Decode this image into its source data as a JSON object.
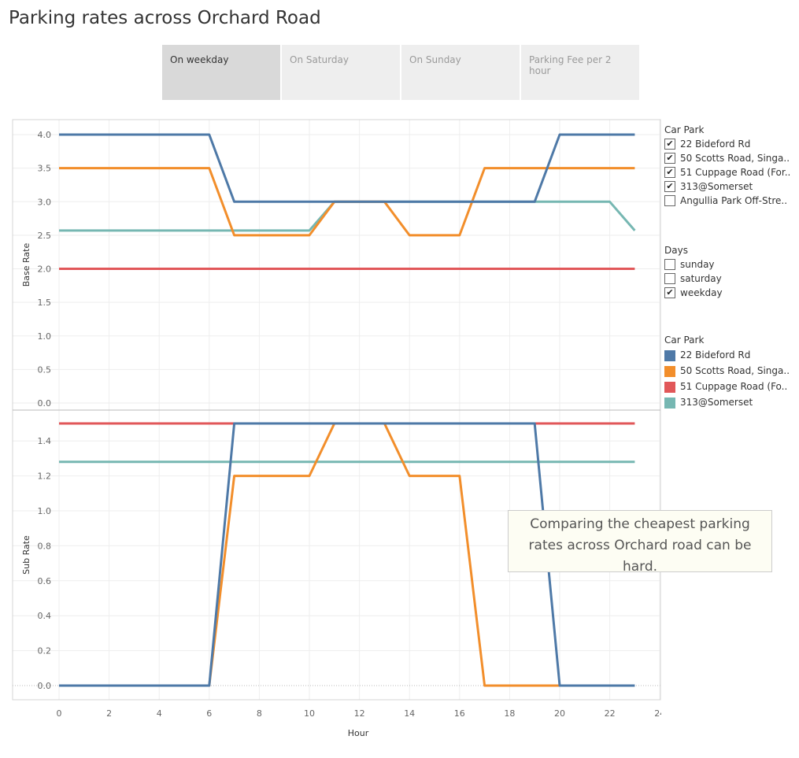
{
  "title": "Parking rates across Orchard Road",
  "tabs": [
    {
      "label": "On weekday",
      "active": true
    },
    {
      "label": "On Saturday",
      "active": false
    },
    {
      "label": "On Sunday",
      "active": false
    },
    {
      "label": "Parking Fee per 2 hour",
      "active": false
    }
  ],
  "filters": {
    "car_park": {
      "title": "Car Park",
      "items": [
        {
          "label": "22 Bideford Rd",
          "checked": true
        },
        {
          "label": "50 Scotts Road, Singa..",
          "checked": true
        },
        {
          "label": "51 Cuppage Road (For..",
          "checked": true
        },
        {
          "label": "313@Somerset",
          "checked": true
        },
        {
          "label": "Angullia Park Off-Stre..",
          "checked": false
        }
      ]
    },
    "days": {
      "title": "Days",
      "items": [
        {
          "label": "sunday",
          "checked": false
        },
        {
          "label": "saturday",
          "checked": false
        },
        {
          "label": "weekday",
          "checked": true
        }
      ]
    }
  },
  "color_legend": {
    "title": "Car Park",
    "items": [
      {
        "label": "22 Bideford Rd",
        "color": "#4e79a7"
      },
      {
        "label": "50 Scotts Road, Singa..",
        "color": "#f28e2b"
      },
      {
        "label": "51 Cuppage Road (Fo..",
        "color": "#e15759"
      },
      {
        "label": "313@Somerset",
        "color": "#76b7b2"
      }
    ]
  },
  "annotation": "Comparing the cheapest parking rates across Orchard road can be hard.",
  "chart_data": [
    {
      "type": "line",
      "ylabel": "Base Rate",
      "xlabel": "",
      "ylim": [
        0,
        4.0
      ],
      "yticks": [
        "0.0",
        "0.5",
        "1.0",
        "1.5",
        "2.0",
        "2.5",
        "3.0",
        "3.5",
        "4.0"
      ],
      "grid": true,
      "series": [
        {
          "name": "51 Cuppage Road (Fo..",
          "color": "#e15759",
          "points": [
            [
              0,
              2.0
            ],
            [
              23,
              2.0
            ]
          ]
        },
        {
          "name": "313@Somerset",
          "color": "#76b7b2",
          "points": [
            [
              0,
              2.57
            ],
            [
              10,
              2.57
            ],
            [
              11,
              3.0
            ],
            [
              22,
              3.0
            ],
            [
              23,
              2.57
            ]
          ]
        },
        {
          "name": "50 Scotts Road, Singa..",
          "color": "#f28e2b",
          "points": [
            [
              0,
              3.5
            ],
            [
              6,
              3.5
            ],
            [
              7,
              2.5
            ],
            [
              10,
              2.5
            ],
            [
              11,
              3.0
            ],
            [
              13,
              3.0
            ],
            [
              14,
              2.5
            ],
            [
              16,
              2.5
            ],
            [
              17,
              3.5
            ],
            [
              23,
              3.5
            ]
          ]
        },
        {
          "name": "22 Bideford Rd",
          "color": "#4e79a7",
          "points": [
            [
              0,
              4.0
            ],
            [
              6,
              4.0
            ],
            [
              7,
              3.0
            ],
            [
              19,
              3.0
            ],
            [
              20,
              4.0
            ],
            [
              23,
              4.0
            ]
          ]
        }
      ]
    },
    {
      "type": "line",
      "ylabel": "Sub Rate",
      "xlabel": "Hour",
      "ylim": [
        0,
        1.5
      ],
      "yticks": [
        "0.0",
        "0.2",
        "0.4",
        "0.6",
        "0.8",
        "1.0",
        "1.2",
        "1.4"
      ],
      "xlim": [
        0,
        24
      ],
      "xticks": [
        "0",
        "2",
        "4",
        "6",
        "8",
        "10",
        "12",
        "14",
        "16",
        "18",
        "20",
        "22",
        "24"
      ],
      "grid": true,
      "series": [
        {
          "name": "51 Cuppage Road (Fo..",
          "color": "#e15759",
          "points": [
            [
              0,
              1.5
            ],
            [
              23,
              1.5
            ]
          ]
        },
        {
          "name": "313@Somerset",
          "color": "#76b7b2",
          "points": [
            [
              0,
              1.28
            ],
            [
              23,
              1.28
            ]
          ]
        },
        {
          "name": "50 Scotts Road, Singa..",
          "color": "#f28e2b",
          "points": [
            [
              0,
              0.0
            ],
            [
              6,
              0.0
            ],
            [
              7,
              1.2
            ],
            [
              10,
              1.2
            ],
            [
              11,
              1.5
            ],
            [
              13,
              1.5
            ],
            [
              14,
              1.2
            ],
            [
              16,
              1.2
            ],
            [
              17,
              0.0
            ],
            [
              20,
              0.0
            ]
          ]
        },
        {
          "name": "22 Bideford Rd",
          "color": "#4e79a7",
          "points": [
            [
              0,
              0.0
            ],
            [
              6,
              0.0
            ],
            [
              7,
              1.5
            ],
            [
              19,
              1.5
            ],
            [
              20,
              0.0
            ],
            [
              23,
              0.0
            ]
          ]
        }
      ]
    }
  ]
}
